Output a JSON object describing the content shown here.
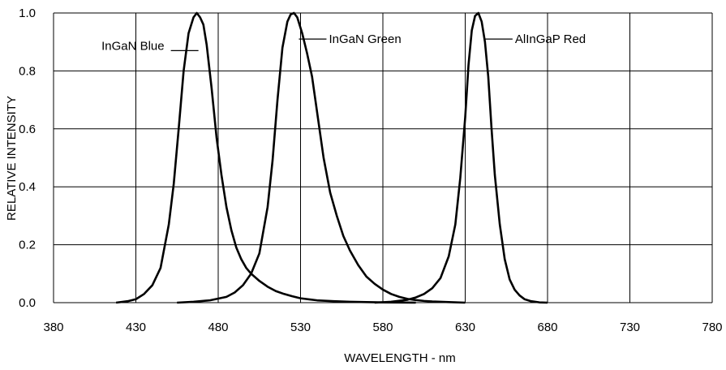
{
  "chart_data": {
    "type": "line",
    "xlabel": "WAVELENGTH - nm",
    "ylabel": "RELATIVE INTENSITY",
    "xlim": [
      380,
      780
    ],
    "ylim": [
      0,
      1.0
    ],
    "xticks": [
      380,
      430,
      480,
      530,
      580,
      630,
      680,
      730,
      780
    ],
    "yticks": [
      0.0,
      0.2,
      0.4,
      0.6,
      0.8,
      1.0
    ],
    "xtick_labels": [
      "380",
      "430",
      "480",
      "530",
      "580",
      "630",
      "680",
      "730",
      "780"
    ],
    "ytick_labels": [
      "0.0",
      "0.2",
      "0.4",
      "0.6",
      "0.8",
      "1.0"
    ],
    "grid": true,
    "series": [
      {
        "name": "InGaN Blue",
        "x": [
          418,
          425,
          430,
          435,
          440,
          445,
          450,
          453,
          456,
          459,
          462,
          465,
          467,
          469,
          471,
          473,
          476,
          479,
          482,
          485,
          488,
          491,
          494,
          497,
          500,
          505,
          510,
          515,
          520,
          525,
          530,
          540,
          550,
          560,
          570,
          580,
          590,
          600
        ],
        "y": [
          0.0,
          0.005,
          0.012,
          0.03,
          0.06,
          0.12,
          0.27,
          0.41,
          0.6,
          0.8,
          0.93,
          0.985,
          1.0,
          0.985,
          0.96,
          0.89,
          0.74,
          0.57,
          0.44,
          0.33,
          0.25,
          0.19,
          0.15,
          0.12,
          0.1,
          0.075,
          0.055,
          0.04,
          0.03,
          0.022,
          0.015,
          0.008,
          0.005,
          0.003,
          0.002,
          0.001,
          0.0005,
          0.0
        ]
      },
      {
        "name": "InGaN Green",
        "x": [
          455,
          465,
          475,
          485,
          490,
          495,
          500,
          505,
          510,
          513,
          516,
          519,
          522,
          524,
          526,
          528,
          531,
          534,
          537,
          540,
          544,
          548,
          552,
          556,
          560,
          565,
          570,
          575,
          580,
          585,
          590,
          595,
          600,
          605,
          610,
          620,
          630
        ],
        "y": [
          0.0,
          0.003,
          0.008,
          0.02,
          0.035,
          0.06,
          0.1,
          0.17,
          0.33,
          0.49,
          0.7,
          0.88,
          0.97,
          0.995,
          1.0,
          0.985,
          0.93,
          0.86,
          0.78,
          0.66,
          0.5,
          0.38,
          0.3,
          0.23,
          0.18,
          0.13,
          0.09,
          0.065,
          0.045,
          0.03,
          0.02,
          0.013,
          0.009,
          0.006,
          0.004,
          0.002,
          0.0
        ]
      },
      {
        "name": "AlInGaP Red",
        "x": [
          575,
          585,
          595,
          600,
          605,
          610,
          615,
          620,
          624,
          627,
          630,
          632,
          634,
          636,
          638,
          640,
          642,
          644,
          646,
          648,
          651,
          654,
          657,
          660,
          663,
          666,
          670,
          675,
          680
        ],
        "y": [
          0.0,
          0.003,
          0.01,
          0.018,
          0.03,
          0.05,
          0.085,
          0.16,
          0.27,
          0.43,
          0.64,
          0.82,
          0.94,
          0.99,
          1.0,
          0.97,
          0.9,
          0.78,
          0.6,
          0.44,
          0.27,
          0.15,
          0.08,
          0.045,
          0.025,
          0.012,
          0.005,
          0.001,
          0.0
        ]
      }
    ],
    "annotations": [
      {
        "series": "InGaN Blue",
        "text": "InGaN Blue",
        "anchor_x": 468,
        "anchor_y": 0.87,
        "side": "left"
      },
      {
        "series": "InGaN Green",
        "text": "InGaN Green",
        "anchor_x": 529,
        "anchor_y": 0.91,
        "side": "right"
      },
      {
        "series": "AlInGaP Red",
        "text": "AlInGaP Red",
        "anchor_x": 642,
        "anchor_y": 0.91,
        "side": "right"
      }
    ]
  }
}
